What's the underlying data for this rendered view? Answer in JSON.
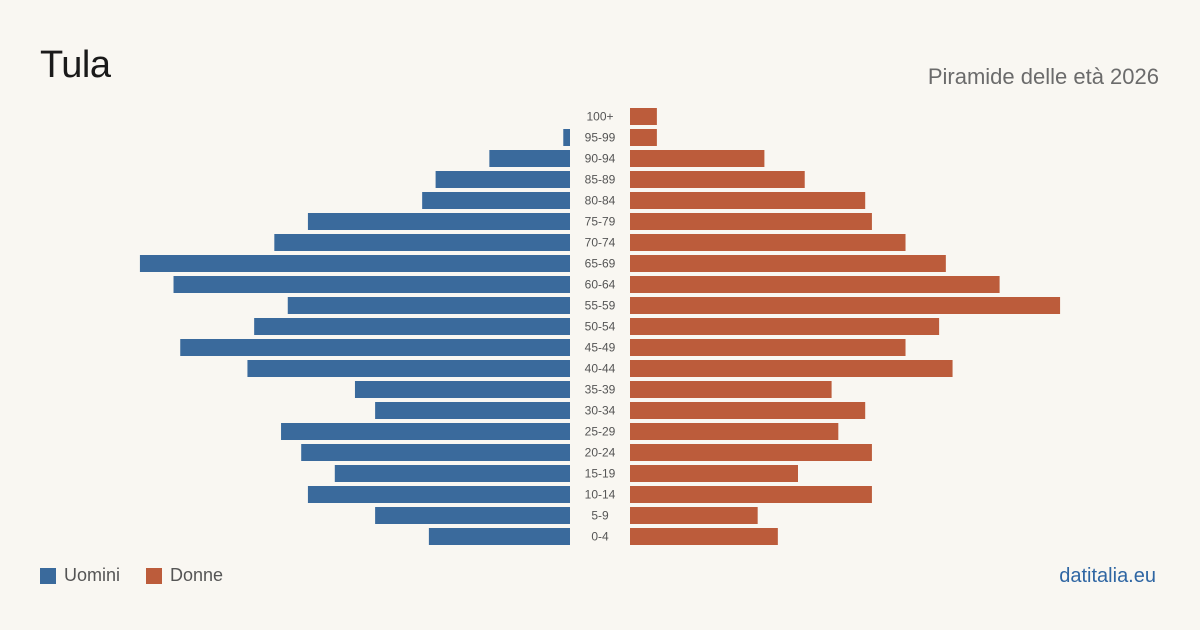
{
  "header": {
    "title": "Tula",
    "subtitle": "Piramide delle età 2026"
  },
  "legend": {
    "male_label": "Uomini",
    "female_label": "Donne"
  },
  "source": "datitalia.eu",
  "colors": {
    "male": "#3a6a9c",
    "female": "#bc5c3b",
    "background": "#f9f7f2"
  },
  "chart_data": {
    "type": "bar",
    "orientation": "horizontal-pyramid",
    "title": "Tula",
    "subtitle": "Piramide delle età 2026",
    "categories": [
      "100+",
      "95-99",
      "90-94",
      "85-89",
      "80-84",
      "75-79",
      "70-74",
      "65-69",
      "60-64",
      "55-59",
      "50-54",
      "45-49",
      "40-44",
      "35-39",
      "30-34",
      "25-29",
      "20-24",
      "15-19",
      "10-14",
      "5-9",
      "0-4"
    ],
    "series": [
      {
        "name": "Uomini",
        "side": "left",
        "values": [
          0,
          1,
          12,
          20,
          22,
          39,
          44,
          64,
          59,
          42,
          47,
          58,
          48,
          32,
          29,
          43,
          40,
          35,
          39,
          29,
          21
        ]
      },
      {
        "name": "Donne",
        "side": "right",
        "values": [
          4,
          4,
          20,
          26,
          35,
          36,
          41,
          47,
          55,
          64,
          46,
          41,
          48,
          30,
          35,
          31,
          36,
          25,
          36,
          19,
          22
        ]
      }
    ],
    "legend": "bottom-left",
    "grid": false
  }
}
